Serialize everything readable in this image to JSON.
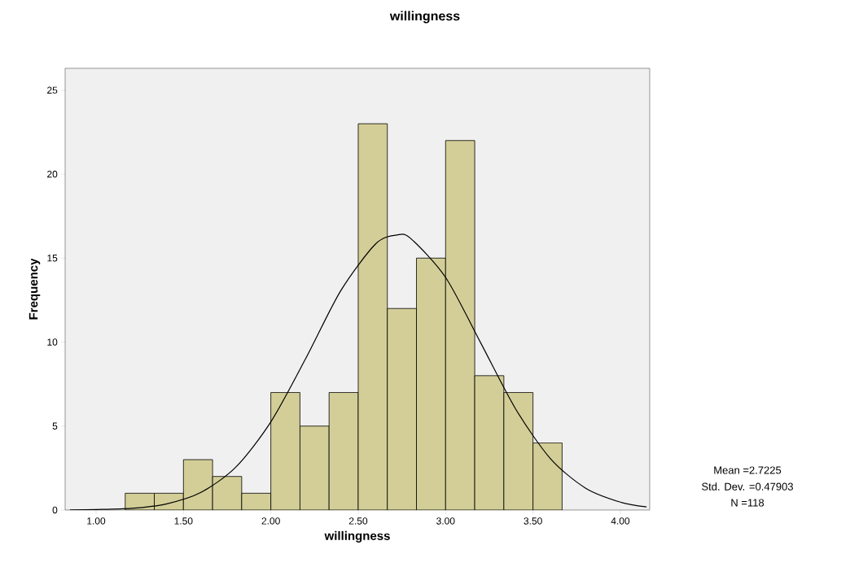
{
  "chart_data": {
    "type": "histogram",
    "title": "willingness",
    "xlabel": "willingness",
    "ylabel": "Frequency",
    "series": [
      {
        "type": "histogram",
        "color": "#d3ce97",
        "bins": [
          1.1667,
          1.3333,
          1.5,
          1.6667,
          1.8333,
          2.0,
          2.1667,
          2.3333,
          2.5,
          2.6667,
          2.8333,
          3.0,
          3.1667,
          3.3333,
          3.5,
          3.6667
        ],
        "values": [
          1,
          1,
          3,
          2,
          1,
          7,
          5,
          7,
          23,
          12,
          15,
          22,
          8,
          7,
          4
        ]
      },
      {
        "type": "line",
        "color": "#000000",
        "x": [
          0.85,
          1.0,
          1.2,
          1.4,
          1.6,
          1.8,
          2.0,
          2.2,
          2.4,
          2.6,
          2.7225,
          2.8,
          3.0,
          3.2,
          3.4,
          3.6,
          3.8,
          4.0,
          4.15
        ],
        "values": [
          0.01,
          0.03,
          0.1,
          0.36,
          1.05,
          2.56,
          5.25,
          9.03,
          13.06,
          15.85,
          16.38,
          16.17,
          13.85,
          9.97,
          6.03,
          3.06,
          1.31,
          0.47,
          0.19
        ]
      }
    ],
    "xlim": [
      0.823,
      4.168
    ],
    "ylim": [
      0,
      26.3
    ],
    "xticks": [
      {
        "value": 1.0,
        "label": "1.00"
      },
      {
        "value": 1.5,
        "label": "1.50"
      },
      {
        "value": 2.0,
        "label": "2.00"
      },
      {
        "value": 2.5,
        "label": "2.50"
      },
      {
        "value": 3.0,
        "label": "3.00"
      },
      {
        "value": 3.5,
        "label": "3.50"
      },
      {
        "value": 4.0,
        "label": "4.00"
      }
    ],
    "yticks": [
      0,
      5,
      10,
      15,
      20,
      25
    ],
    "annotations": [
      "Mean =2.7225",
      "Std. Dev. =0.47903",
      "N =118"
    ]
  }
}
